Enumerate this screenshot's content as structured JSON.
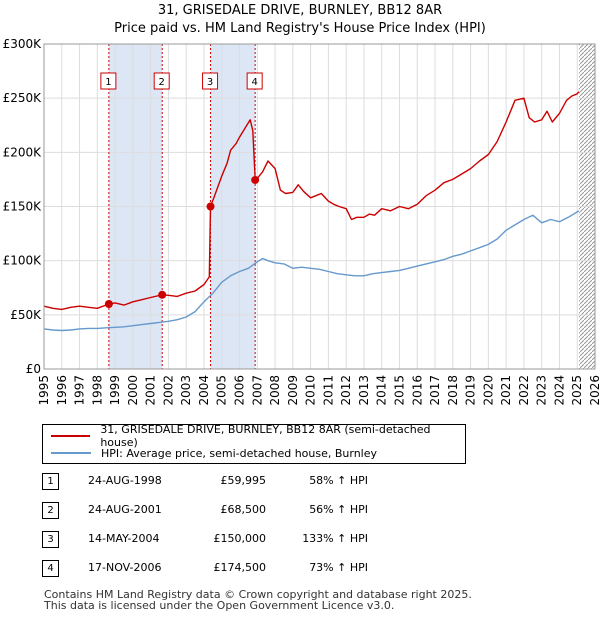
{
  "title_line1": "31, GRISEDALE DRIVE, BURNLEY, BB12 8AR",
  "title_line2": "Price paid vs. HM Land Registry's House Price Index (HPI)",
  "legend": {
    "property_label": "31, GRISEDALE DRIVE, BURNLEY, BB12 8AR (semi-detached house)",
    "hpi_label": "HPI: Average price, semi-detached house, Burnley"
  },
  "sales": [
    {
      "num": "1",
      "date": "24-AUG-1998",
      "price": "£59,995",
      "hpi": "58% ↑ HPI"
    },
    {
      "num": "2",
      "date": "24-AUG-2001",
      "price": "£68,500",
      "hpi": "56% ↑ HPI"
    },
    {
      "num": "3",
      "date": "14-MAY-2004",
      "price": "£150,000",
      "hpi": "133% ↑ HPI"
    },
    {
      "num": "4",
      "date": "17-NOV-2006",
      "price": "£174,500",
      "hpi": "73% ↑ HPI"
    }
  ],
  "footer_line1": "Contains HM Land Registry data © Crown copyright and database right 2025.",
  "footer_line2": "This data is licensed under the Open Government Licence v3.0.",
  "chart_data": {
    "type": "line",
    "title": "31, GRISEDALE DRIVE, BURNLEY, BB12 8AR",
    "subtitle": "Price paid vs. HM Land Registry's House Price Index (HPI)",
    "xlim": [
      1995,
      2026
    ],
    "ylim": [
      0,
      300000
    ],
    "x_ticks": [
      1995,
      1996,
      1997,
      1998,
      1999,
      2000,
      2001,
      2002,
      2003,
      2004,
      2005,
      2006,
      2007,
      2008,
      2009,
      2010,
      2011,
      2012,
      2013,
      2014,
      2015,
      2016,
      2017,
      2018,
      2019,
      2020,
      2021,
      2022,
      2023,
      2024,
      2025,
      2026
    ],
    "y_ticks": [
      0,
      50000,
      100000,
      150000,
      200000,
      250000,
      300000
    ],
    "y_tick_labels": [
      "£0",
      "£50K",
      "£100K",
      "£150K",
      "£200K",
      "£250K",
      "£300K"
    ],
    "grid": true,
    "colors": {
      "property": "#cc0000",
      "hpi": "#6699cc",
      "shade": "#dde6f5",
      "marker_line": "#cc0000",
      "hatch": "#999999"
    },
    "shaded_periods": [
      [
        1998.65,
        2001.65
      ],
      [
        2004.37,
        2006.88
      ]
    ],
    "future_hatch_from": 2025.1,
    "sale_markers": [
      {
        "label": "1",
        "x": 1998.65,
        "y": 59995
      },
      {
        "label": "2",
        "x": 2001.65,
        "y": 68500
      },
      {
        "label": "3",
        "x": 2004.37,
        "y": 150000
      },
      {
        "label": "4",
        "x": 2006.88,
        "y": 174500
      }
    ],
    "series": [
      {
        "name": "31, GRISEDALE DRIVE, BURNLEY, BB12 8AR (semi-detached house)",
        "color": "#cc0000",
        "x": [
          1995,
          1995.5,
          1996,
          1996.5,
          1997,
          1997.5,
          1998,
          1998.65,
          1999,
          1999.5,
          2000,
          2000.5,
          2001,
          2001.65,
          2002,
          2002.5,
          2003,
          2003.5,
          2004,
          2004.3,
          2004.37,
          2004.6,
          2005,
          2005.3,
          2005.5,
          2005.8,
          2006,
          2006.3,
          2006.6,
          2006.75,
          2006.88,
          2007,
          2007.3,
          2007.6,
          2008,
          2008.3,
          2008.6,
          2009,
          2009.3,
          2009.6,
          2010,
          2010.3,
          2010.6,
          2011,
          2011.3,
          2011.6,
          2012,
          2012.3,
          2012.6,
          2013,
          2013.3,
          2013.6,
          2014,
          2014.5,
          2015,
          2015.5,
          2016,
          2016.5,
          2017,
          2017.5,
          2018,
          2018.5,
          2019,
          2019.5,
          2020,
          2020.5,
          2021,
          2021.5,
          2022,
          2022.3,
          2022.6,
          2023,
          2023.3,
          2023.6,
          2024,
          2024.4,
          2024.7,
          2025,
          2025.1
        ],
        "y": [
          58000,
          56000,
          55000,
          57000,
          58000,
          57000,
          56000,
          59995,
          61000,
          59000,
          62000,
          64000,
          66000,
          68500,
          68000,
          67000,
          70000,
          72000,
          78000,
          85000,
          150000,
          160000,
          178000,
          190000,
          202000,
          208000,
          214000,
          222000,
          230000,
          220000,
          174500,
          176000,
          182000,
          192000,
          185000,
          165000,
          162000,
          163000,
          170000,
          164000,
          158000,
          160000,
          162000,
          155000,
          152000,
          150000,
          148000,
          138000,
          140000,
          140000,
          143000,
          142000,
          148000,
          146000,
          150000,
          148000,
          152000,
          160000,
          165000,
          172000,
          175000,
          180000,
          185000,
          192000,
          198000,
          210000,
          228000,
          248000,
          250000,
          232000,
          228000,
          230000,
          238000,
          228000,
          236000,
          248000,
          252000,
          254000,
          256000
        ]
      },
      {
        "name": "HPI: Average price, semi-detached house, Burnley",
        "color": "#6699cc",
        "x": [
          1995,
          1995.5,
          1996,
          1996.5,
          1997,
          1997.5,
          1998,
          1998.5,
          1999,
          1999.5,
          2000,
          2000.5,
          2001,
          2001.5,
          2002,
          2002.5,
          2003,
          2003.5,
          2004,
          2004.5,
          2005,
          2005.5,
          2006,
          2006.5,
          2007,
          2007.3,
          2007.6,
          2008,
          2008.5,
          2009,
          2009.5,
          2010,
          2010.5,
          2011,
          2011.5,
          2012,
          2012.5,
          2013,
          2013.5,
          2014,
          2014.5,
          2015,
          2015.5,
          2016,
          2016.5,
          2017,
          2017.5,
          2018,
          2018.5,
          2019,
          2019.5,
          2020,
          2020.5,
          2021,
          2021.5,
          2022,
          2022.5,
          2023,
          2023.5,
          2024,
          2024.5,
          2025,
          2025.1
        ],
        "y": [
          37000,
          36000,
          35500,
          36000,
          37000,
          37500,
          37500,
          38000,
          38500,
          39000,
          40000,
          41000,
          42000,
          43000,
          44000,
          45500,
          48000,
          53000,
          62000,
          70000,
          80000,
          86000,
          90000,
          93000,
          99000,
          102000,
          100000,
          98000,
          97000,
          93000,
          94000,
          93000,
          92000,
          90000,
          88000,
          87000,
          86000,
          86000,
          88000,
          89000,
          90000,
          91000,
          93000,
          95000,
          97000,
          99000,
          101000,
          104000,
          106000,
          109000,
          112000,
          115000,
          120000,
          128000,
          133000,
          138000,
          142000,
          135000,
          138000,
          136000,
          140000,
          145000,
          146000
        ]
      }
    ]
  }
}
